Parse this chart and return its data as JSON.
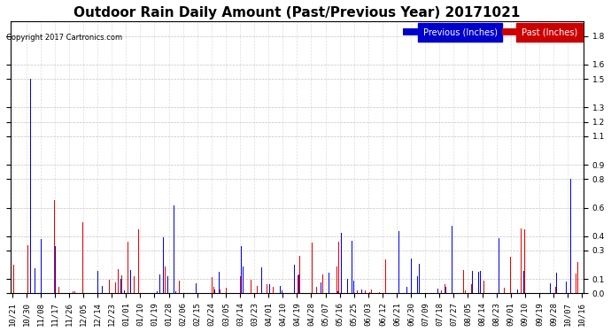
{
  "title": "Outdoor Rain Daily Amount (Past/Previous Year) 20171021",
  "copyright": "Copyright 2017 Cartronics.com",
  "legend_labels": [
    "Previous (Inches)",
    "Past (Inches)"
  ],
  "legend_colors": [
    "#0000ff",
    "#ff0000"
  ],
  "legend_bg_colors": [
    "#0000cc",
    "#cc0000"
  ],
  "yticks": [
    0.0,
    0.1,
    0.3,
    0.4,
    0.6,
    0.8,
    0.9,
    1.1,
    1.2,
    1.3,
    1.5,
    1.6,
    1.8
  ],
  "ylim": [
    0.0,
    1.9
  ],
  "background_color": "#ffffff",
  "plot_bg_color": "#ffffff",
  "grid_color": "#aaaaaa",
  "bar_width": 0.35,
  "title_fontsize": 11,
  "tick_fontsize": 6.5,
  "x_tick_labels": [
    "10/21",
    "10/30",
    "11/08",
    "11/17",
    "11/26",
    "12/05",
    "12/14",
    "12/23",
    "01/01",
    "01/10",
    "01/19",
    "01/28",
    "02/06",
    "02/15",
    "02/24",
    "03/05",
    "03/14",
    "03/23",
    "04/01",
    "04/10",
    "04/19",
    "04/28",
    "05/07",
    "05/16",
    "05/25",
    "06/03",
    "06/12",
    "06/21",
    "06/30",
    "07/09",
    "07/18",
    "07/27",
    "08/05",
    "08/14",
    "08/23",
    "09/01",
    "09/10",
    "09/19",
    "09/28",
    "10/07",
    "10/16"
  ],
  "num_days": 366
}
